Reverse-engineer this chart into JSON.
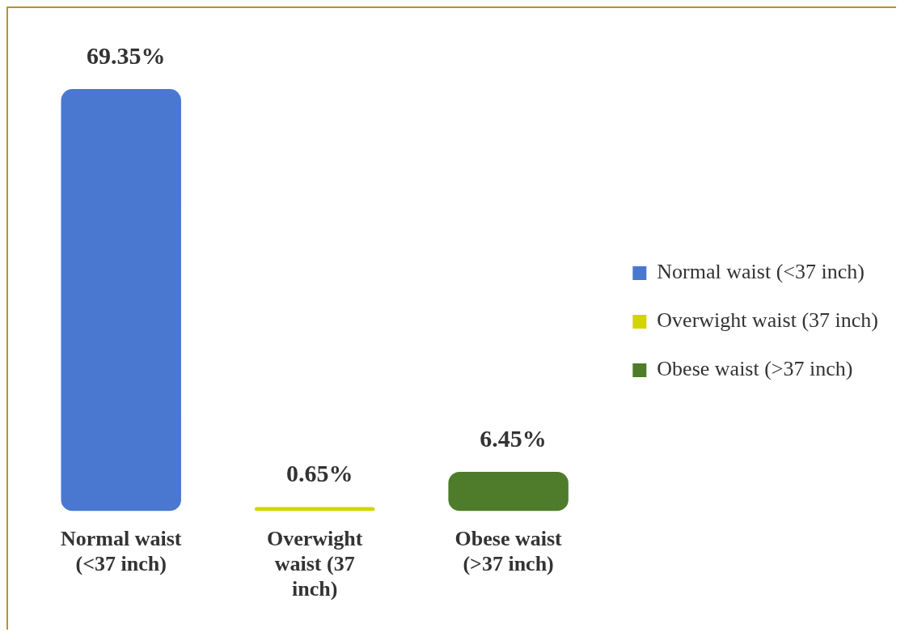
{
  "chart_data": {
    "type": "bar",
    "categories": [
      "Normal waist (<37 inch)",
      "Overwight waist (37 inch)",
      "Obese waist (>37 inch)"
    ],
    "series": [
      {
        "name": "Normal waist (<37 inch)",
        "color": "#4a78d0",
        "values": [
          69.35,
          null,
          null
        ],
        "value_labels": [
          "69.35%",
          null,
          null
        ]
      },
      {
        "name": "Overwight waist (37 inch)",
        "color": "#d4d400",
        "values": [
          null,
          0.65,
          null
        ],
        "value_labels": [
          null,
          "0.65%",
          null
        ]
      },
      {
        "name": "Obese waist (>37 inch)",
        "color": "#4e7c2a",
        "values": [
          null,
          null,
          6.45
        ],
        "value_labels": [
          null,
          null,
          "6.45%"
        ]
      }
    ],
    "legend": "right"
  }
}
